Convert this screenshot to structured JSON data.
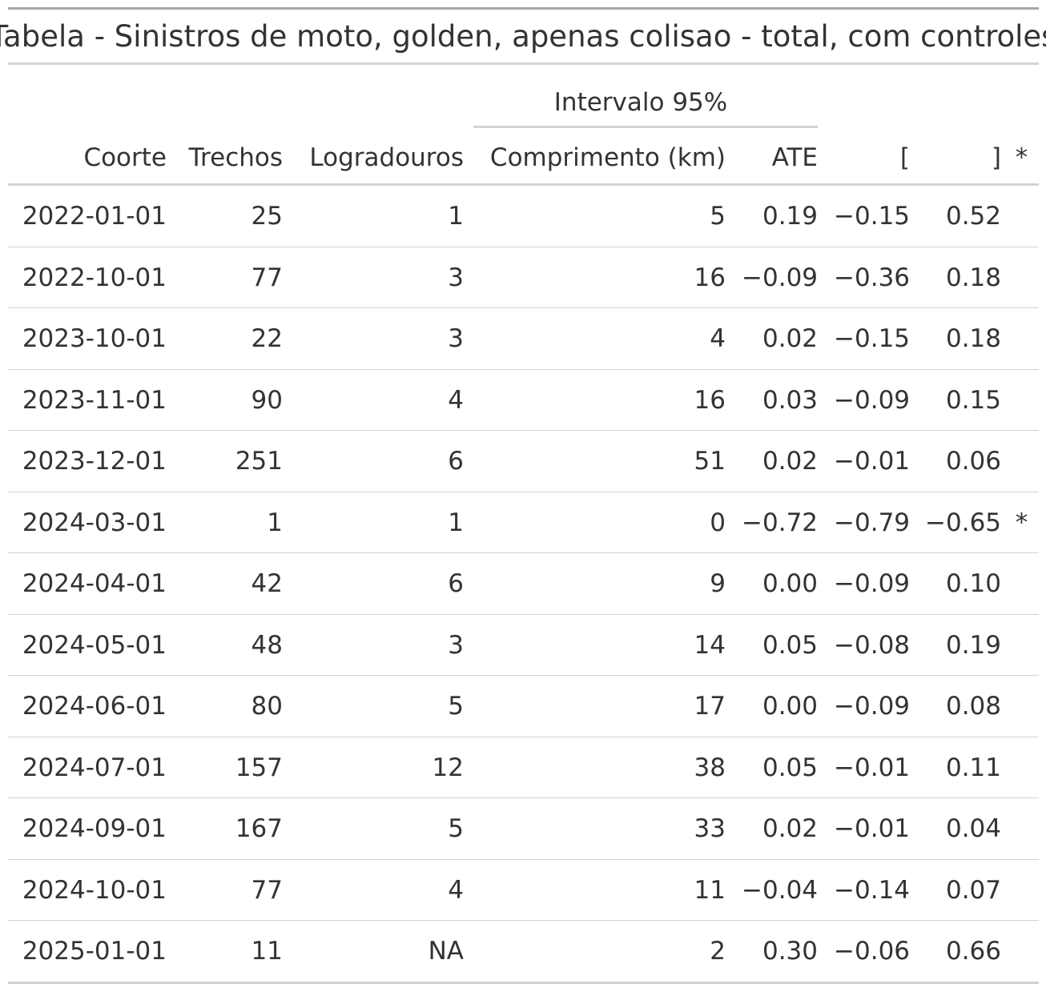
{
  "table": {
    "title": "Tabela - Sinistros de moto, golden, apenas colisao - total, com controles",
    "spanner_label": "Intervalo 95%",
    "columns": {
      "coorte": "Coorte",
      "trechos": "Trechos",
      "logradouros": "Logradouros",
      "comprimento": "Comprimento (km)",
      "ate": "ATE",
      "lower": "[",
      "upper": "]",
      "sig": "*"
    },
    "rows": [
      {
        "coorte": "2022-01-01",
        "trechos": "25",
        "logradouros": "1",
        "comprimento": "5",
        "ate": "0.19",
        "lower": "−0.15",
        "upper": "0.52",
        "sig": ""
      },
      {
        "coorte": "2022-10-01",
        "trechos": "77",
        "logradouros": "3",
        "comprimento": "16",
        "ate": "−0.09",
        "lower": "−0.36",
        "upper": "0.18",
        "sig": ""
      },
      {
        "coorte": "2023-10-01",
        "trechos": "22",
        "logradouros": "3",
        "comprimento": "4",
        "ate": "0.02",
        "lower": "−0.15",
        "upper": "0.18",
        "sig": ""
      },
      {
        "coorte": "2023-11-01",
        "trechos": "90",
        "logradouros": "4",
        "comprimento": "16",
        "ate": "0.03",
        "lower": "−0.09",
        "upper": "0.15",
        "sig": ""
      },
      {
        "coorte": "2023-12-01",
        "trechos": "251",
        "logradouros": "6",
        "comprimento": "51",
        "ate": "0.02",
        "lower": "−0.01",
        "upper": "0.06",
        "sig": ""
      },
      {
        "coorte": "2024-03-01",
        "trechos": "1",
        "logradouros": "1",
        "comprimento": "0",
        "ate": "−0.72",
        "lower": "−0.79",
        "upper": "−0.65",
        "sig": "*"
      },
      {
        "coorte": "2024-04-01",
        "trechos": "42",
        "logradouros": "6",
        "comprimento": "9",
        "ate": "0.00",
        "lower": "−0.09",
        "upper": "0.10",
        "sig": ""
      },
      {
        "coorte": "2024-05-01",
        "trechos": "48",
        "logradouros": "3",
        "comprimento": "14",
        "ate": "0.05",
        "lower": "−0.08",
        "upper": "0.19",
        "sig": ""
      },
      {
        "coorte": "2024-06-01",
        "trechos": "80",
        "logradouros": "5",
        "comprimento": "17",
        "ate": "0.00",
        "lower": "−0.09",
        "upper": "0.08",
        "sig": ""
      },
      {
        "coorte": "2024-07-01",
        "trechos": "157",
        "logradouros": "12",
        "comprimento": "38",
        "ate": "0.05",
        "lower": "−0.01",
        "upper": "0.11",
        "sig": ""
      },
      {
        "coorte": "2024-09-01",
        "trechos": "167",
        "logradouros": "5",
        "comprimento": "33",
        "ate": "0.02",
        "lower": "−0.01",
        "upper": "0.04",
        "sig": ""
      },
      {
        "coorte": "2024-10-01",
        "trechos": "77",
        "logradouros": "4",
        "comprimento": "11",
        "ate": "−0.04",
        "lower": "−0.14",
        "upper": "0.07",
        "sig": ""
      },
      {
        "coorte": "2025-01-01",
        "trechos": "11",
        "logradouros": "NA",
        "comprimento": "2",
        "ate": "0.30",
        "lower": "−0.06",
        "upper": "0.66",
        "sig": ""
      }
    ]
  }
}
